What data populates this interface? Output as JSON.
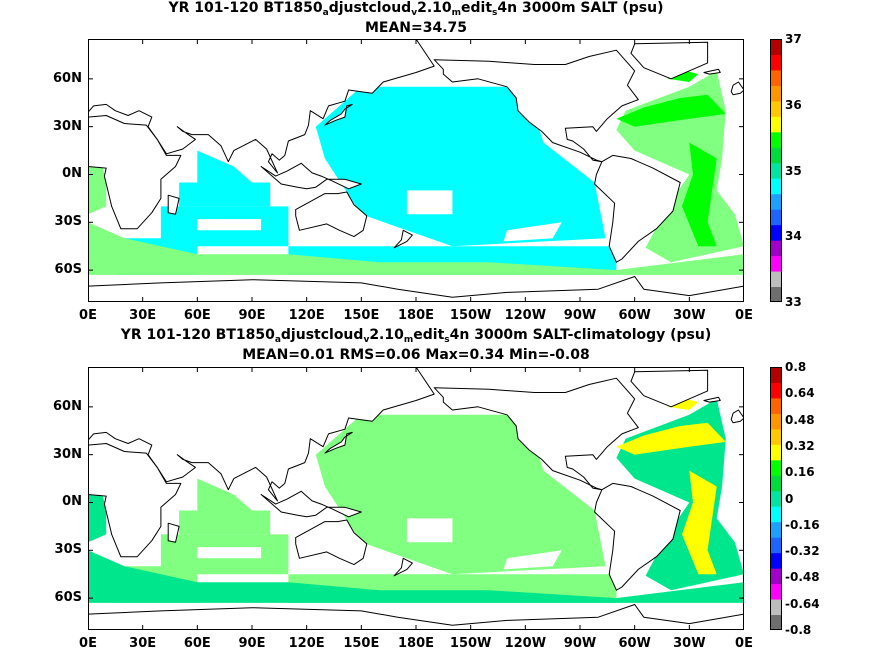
{
  "panels": [
    {
      "title_parts": [
        "YR 101-120 BT1850",
        "a",
        "djustcloud",
        "v",
        "2.10",
        "m",
        "edit",
        "s",
        "4n 3000m SALT (psu)"
      ],
      "stats": "MEAN=34.75",
      "colorbar_ticks": [
        "37",
        "36",
        "35",
        "34",
        "33"
      ],
      "colorbar_colors": [
        "#6e6e6e",
        "#bdbdbd",
        "#ff00ff",
        "#a000c8",
        "#0000ff",
        "#1e64ff",
        "#1ea0ff",
        "#00ffff",
        "#00e6a0",
        "#00dc3c",
        "#00ff00",
        "#ffff00",
        "#ffc800",
        "#ff9600",
        "#ff6400",
        "#ff0000",
        "#b40000"
      ],
      "ocean_color": "#00ffff",
      "accent_color": "#80ff80",
      "strong_color": "#00ff00"
    },
    {
      "title_parts": [
        "YR 101-120 BT1850",
        "a",
        "djustcloud",
        "v",
        "2.10",
        "m",
        "edit",
        "s",
        "4n 3000m SALT-climatology (psu)"
      ],
      "stats": "MEAN=0.01   RMS=0.06   Max=0.34   Min=-0.08",
      "colorbar_ticks": [
        "0.8",
        "0.64",
        "0.48",
        "0.32",
        "0.16",
        "0",
        "-0.16",
        "-0.32",
        "-0.48",
        "-0.64",
        "-0.8"
      ],
      "colorbar_colors": [
        "#6e6e6e",
        "#bdbdbd",
        "#ff00ff",
        "#a000c8",
        "#0000ff",
        "#1e64ff",
        "#1ea0ff",
        "#00ffff",
        "#00e6a0",
        "#00dc3c",
        "#00ff00",
        "#ffff00",
        "#ffc800",
        "#ff9600",
        "#ff6400",
        "#ff0000",
        "#b40000"
      ],
      "ocean_color": "#80ff80",
      "accent_color": "#00e68c",
      "strong_color": "#ffff00"
    }
  ],
  "chart_data": [
    {
      "type": "heatmap",
      "title": "YR 101-120 BT1850adjustcloudv2.10medits4n 3000m SALT (psu)",
      "subtitle": "MEAN=34.75",
      "x_tick_labels": [
        "0E",
        "30E",
        "60E",
        "90E",
        "120E",
        "150E",
        "180E",
        "150W",
        "120W",
        "90W",
        "60W",
        "30W",
        "0E"
      ],
      "y_tick_labels": [
        "60N",
        "30N",
        "0N",
        "30S",
        "60S"
      ],
      "colorbar_range": [
        33,
        37
      ],
      "colorbar_ticks": [
        33,
        34,
        35,
        36,
        37
      ],
      "mean": 34.75
    },
    {
      "type": "heatmap",
      "title": "YR 101-120 BT1850adjustcloudv2.10medits4n 3000m SALT-climatology (psu)",
      "subtitle": "MEAN=0.01   RMS=0.06   Max=0.34   Min=-0.08",
      "x_tick_labels": [
        "0E",
        "30E",
        "60E",
        "90E",
        "120E",
        "150E",
        "180E",
        "150W",
        "120W",
        "90W",
        "60W",
        "30W",
        "0E"
      ],
      "y_tick_labels": [
        "60N",
        "30N",
        "0N",
        "30S",
        "60S"
      ],
      "colorbar_range": [
        -0.8,
        0.8
      ],
      "colorbar_ticks": [
        -0.8,
        -0.64,
        -0.48,
        -0.32,
        -0.16,
        0,
        0.16,
        0.32,
        0.48,
        0.64,
        0.8
      ],
      "mean": 0.01,
      "rms": 0.06,
      "max": 0.34,
      "min": -0.08
    }
  ],
  "axes": {
    "x_ticks": [
      "0E",
      "30E",
      "60E",
      "90E",
      "120E",
      "150E",
      "180E",
      "150W",
      "120W",
      "90W",
      "60W",
      "30W",
      "0E"
    ],
    "y_ticks": [
      "60N",
      "30N",
      "0N",
      "30S",
      "60S"
    ]
  }
}
